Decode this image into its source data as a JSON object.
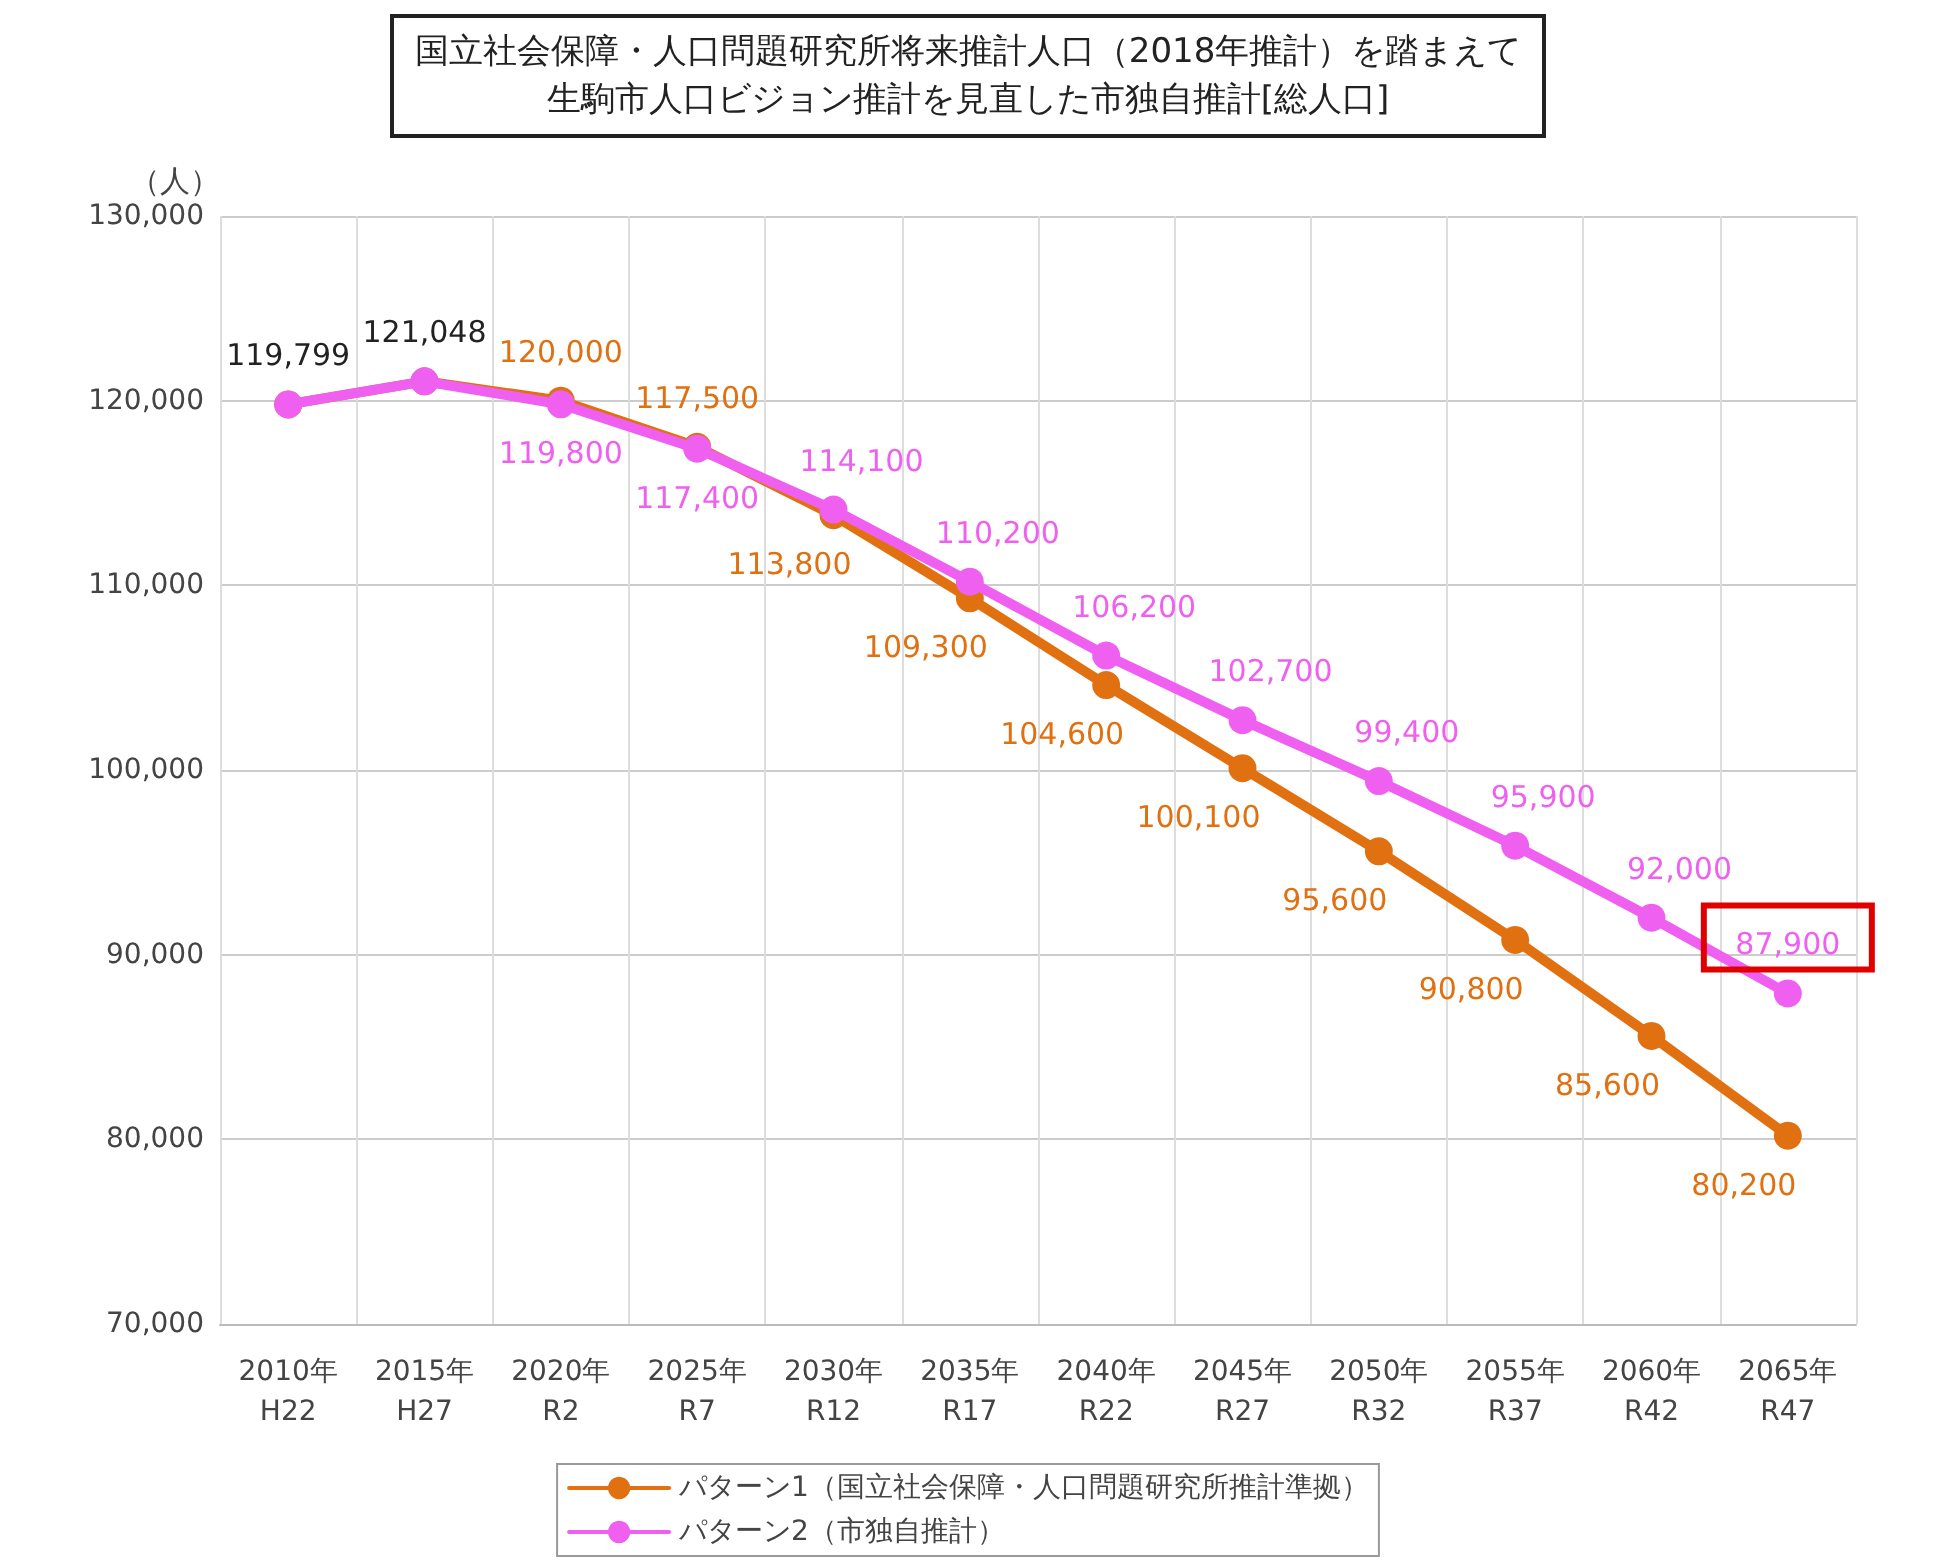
{
  "chart_data": {
    "type": "line",
    "title": "国立社会保障・人口問題研究所将来推計人口（2018年推計）を踏まえて生駒市人口ビジョン推計を見直した市独自推計[総人口]",
    "ylabel": "（人）",
    "categories": [
      "2010年\nH22",
      "2015年\nH27",
      "2020年\nR2",
      "2025年\nR7",
      "2030年\nR12",
      "2035年\nR17",
      "2040年\nR22",
      "2045年\nR27",
      "2050年\nR32",
      "2055年\nR37",
      "2060年\nR42",
      "2065年\nR47"
    ],
    "series": [
      {
        "name": "パターン1（国立社会保障・人口問題研究所推計準拠）",
        "color": "#e07010",
        "values": [
          119799,
          121048,
          120000,
          117500,
          113800,
          109300,
          104600,
          100100,
          95600,
          90800,
          85600,
          80200
        ],
        "value_labels": [
          "119,799",
          "121,048",
          "120,000",
          "117,500",
          "113,800",
          "109,300",
          "104,600",
          "100,100",
          "95,600",
          "90,800",
          "85,600",
          "80,200"
        ]
      },
      {
        "name": "パターン2（市独自推計）",
        "color": "#f060f0",
        "values": [
          119799,
          121048,
          119800,
          117400,
          114100,
          110200,
          106200,
          102700,
          99400,
          95900,
          92000,
          87900
        ],
        "value_labels": [
          null,
          null,
          "119,800",
          "117,400",
          "114,100",
          "110,200",
          "106,200",
          "102,700",
          "99,400",
          "95,900",
          "92,000",
          "87,900"
        ]
      }
    ],
    "ylim": [
      70000,
      130000
    ],
    "yticks": [
      {
        "value": 70000,
        "label": "70,000"
      },
      {
        "value": 80000,
        "label": "80,000"
      },
      {
        "value": 90000,
        "label": "90,000"
      },
      {
        "value": 100000,
        "label": "100,000"
      },
      {
        "value": 110000,
        "label": "110,000"
      },
      {
        "value": 120000,
        "label": "120,000"
      },
      {
        "value": 130000,
        "label": "130,000"
      }
    ],
    "grid": true,
    "legend": "bottom",
    "marker": "circle",
    "line_style": "solid"
  }
}
